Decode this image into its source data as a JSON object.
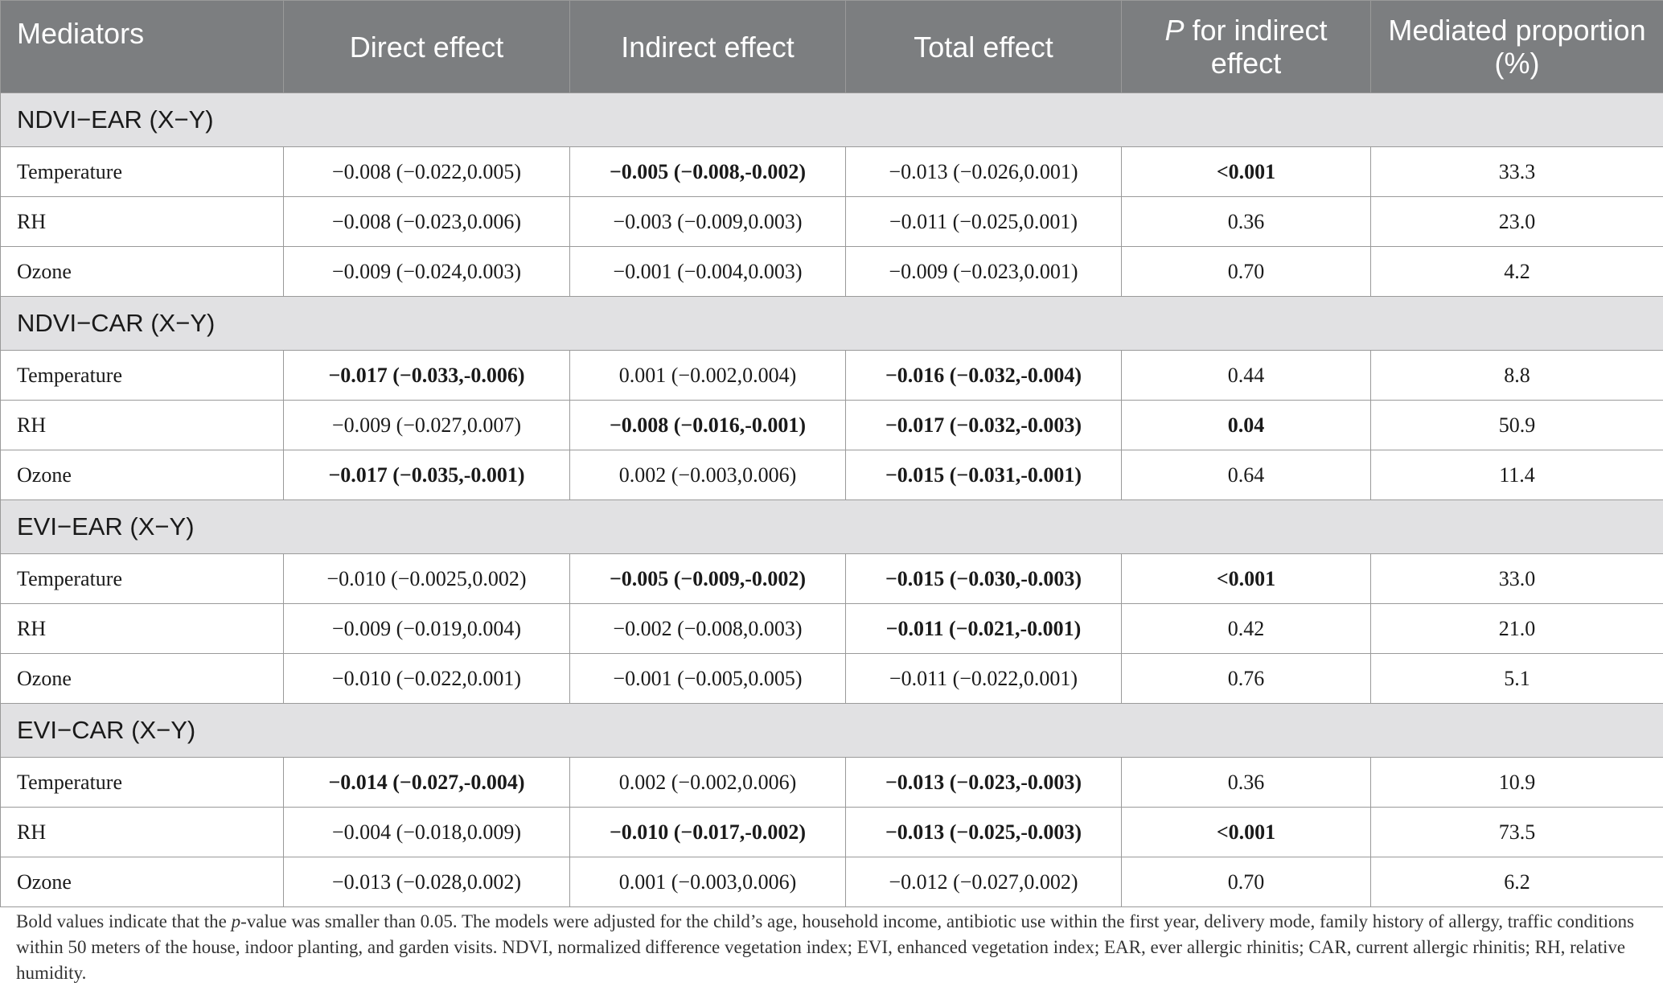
{
  "header": {
    "mediators": "Mediators",
    "direct": "Direct effect",
    "indirect": "Indirect effect",
    "total": "Total effect",
    "p_italic": "P",
    "p_rest": " for indirect effect",
    "proportion": "Mediated proportion (%)"
  },
  "groups": [
    {
      "title": "NDVI−EAR (X−Y)",
      "rows": [
        {
          "mediator": "Temperature",
          "direct": "−0.008 (−0.022,0.005)",
          "indirect": "−0.005 (−0.008,-0.002)",
          "total": "−0.013 (−0.026,0.001)",
          "p": "<0.001",
          "prop": "33.3"
        },
        {
          "mediator": "RH",
          "direct": "−0.008 (−0.023,0.006)",
          "indirect": "−0.003 (−0.009,0.003)",
          "total": "−0.011 (−0.025,0.001)",
          "p": "0.36",
          "prop": "23.0"
        },
        {
          "mediator": "Ozone",
          "direct": "−0.009 (−0.024,0.003)",
          "indirect": "−0.001 (−0.004,0.003)",
          "total": "−0.009 (−0.023,0.001)",
          "p": "0.70",
          "prop": "4.2"
        }
      ]
    },
    {
      "title": "NDVI−CAR (X−Y)",
      "rows": [
        {
          "mediator": "Temperature",
          "direct": "−0.017 (−0.033,-0.006)",
          "indirect": "0.001 (−0.002,0.004)",
          "total": "−0.016 (−0.032,-0.004)",
          "p": "0.44",
          "prop": "8.8"
        },
        {
          "mediator": "RH",
          "direct": "−0.009 (−0.027,0.007)",
          "indirect": "−0.008 (−0.016,-0.001)",
          "total": "−0.017 (−0.032,-0.003)",
          "p": "0.04",
          "prop": "50.9"
        },
        {
          "mediator": "Ozone",
          "direct": "−0.017 (−0.035,-0.001)",
          "indirect": "0.002 (−0.003,0.006)",
          "total": "−0.015 (−0.031,-0.001)",
          "p": "0.64",
          "prop": "11.4"
        }
      ]
    },
    {
      "title": "EVI−EAR (X−Y)",
      "rows": [
        {
          "mediator": "Temperature",
          "direct": "−0.010 (−0.0025,0.002)",
          "indirect": "−0.005 (−0.009,-0.002)",
          "total": "−0.015 (−0.030,-0.003)",
          "p": "<0.001",
          "prop": "33.0"
        },
        {
          "mediator": "RH",
          "direct": "−0.009 (−0.019,0.004)",
          "indirect": "−0.002 (−0.008,0.003)",
          "total": "−0.011 (−0.021,-0.001)",
          "p": "0.42",
          "prop": "21.0"
        },
        {
          "mediator": "Ozone",
          "direct": "−0.010 (−0.022,0.001)",
          "indirect": "−0.001 (−0.005,0.005)",
          "total": "−0.011 (−0.022,0.001)",
          "p": "0.76",
          "prop": "5.1"
        }
      ]
    },
    {
      "title": "EVI−CAR (X−Y)",
      "rows": [
        {
          "mediator": "Temperature",
          "direct": "−0.014 (−0.027,-0.004)",
          "indirect": "0.002 (−0.002,0.006)",
          "total": "−0.013 (−0.023,-0.003)",
          "p": "0.36",
          "prop": "10.9"
        },
        {
          "mediator": "RH",
          "direct": "−0.004 (−0.018,0.009)",
          "indirect": "−0.010 (−0.017,-0.002)",
          "total": "−0.013 (−0.025,-0.003)",
          "p": "<0.001",
          "prop": "73.5"
        },
        {
          "mediator": "Ozone",
          "direct": "−0.013 (−0.028,0.002)",
          "indirect": "0.001 (−0.003,0.006)",
          "total": "−0.012 (−0.027,0.002)",
          "p": "0.70",
          "prop": "6.2"
        }
      ]
    }
  ],
  "bold_cells": [
    [
      [
        "indirect",
        "p"
      ],
      [],
      []
    ],
    [
      [
        "direct",
        "total"
      ],
      [
        "indirect",
        "total",
        "p"
      ],
      [
        "direct",
        "total"
      ]
    ],
    [
      [
        "indirect",
        "total",
        "p"
      ],
      [
        "total"
      ],
      []
    ],
    [
      [
        "direct",
        "total"
      ],
      [
        "indirect",
        "total",
        "p"
      ],
      []
    ]
  ],
  "footnote": {
    "part1": "Bold values indicate that the ",
    "p_italic": "p",
    "part2": "-value was smaller than 0.05. The models were adjusted for the child’s age, household income, antibiotic use within the first year, delivery mode, family history of allergy, traffic conditions within 50 meters of the house, indoor planting, and garden visits. NDVI, normalized difference vegetation index; EVI, enhanced vegetation index; EAR, ever allergic rhinitis; CAR, current allergic rhinitis; RH, relative humidity."
  }
}
